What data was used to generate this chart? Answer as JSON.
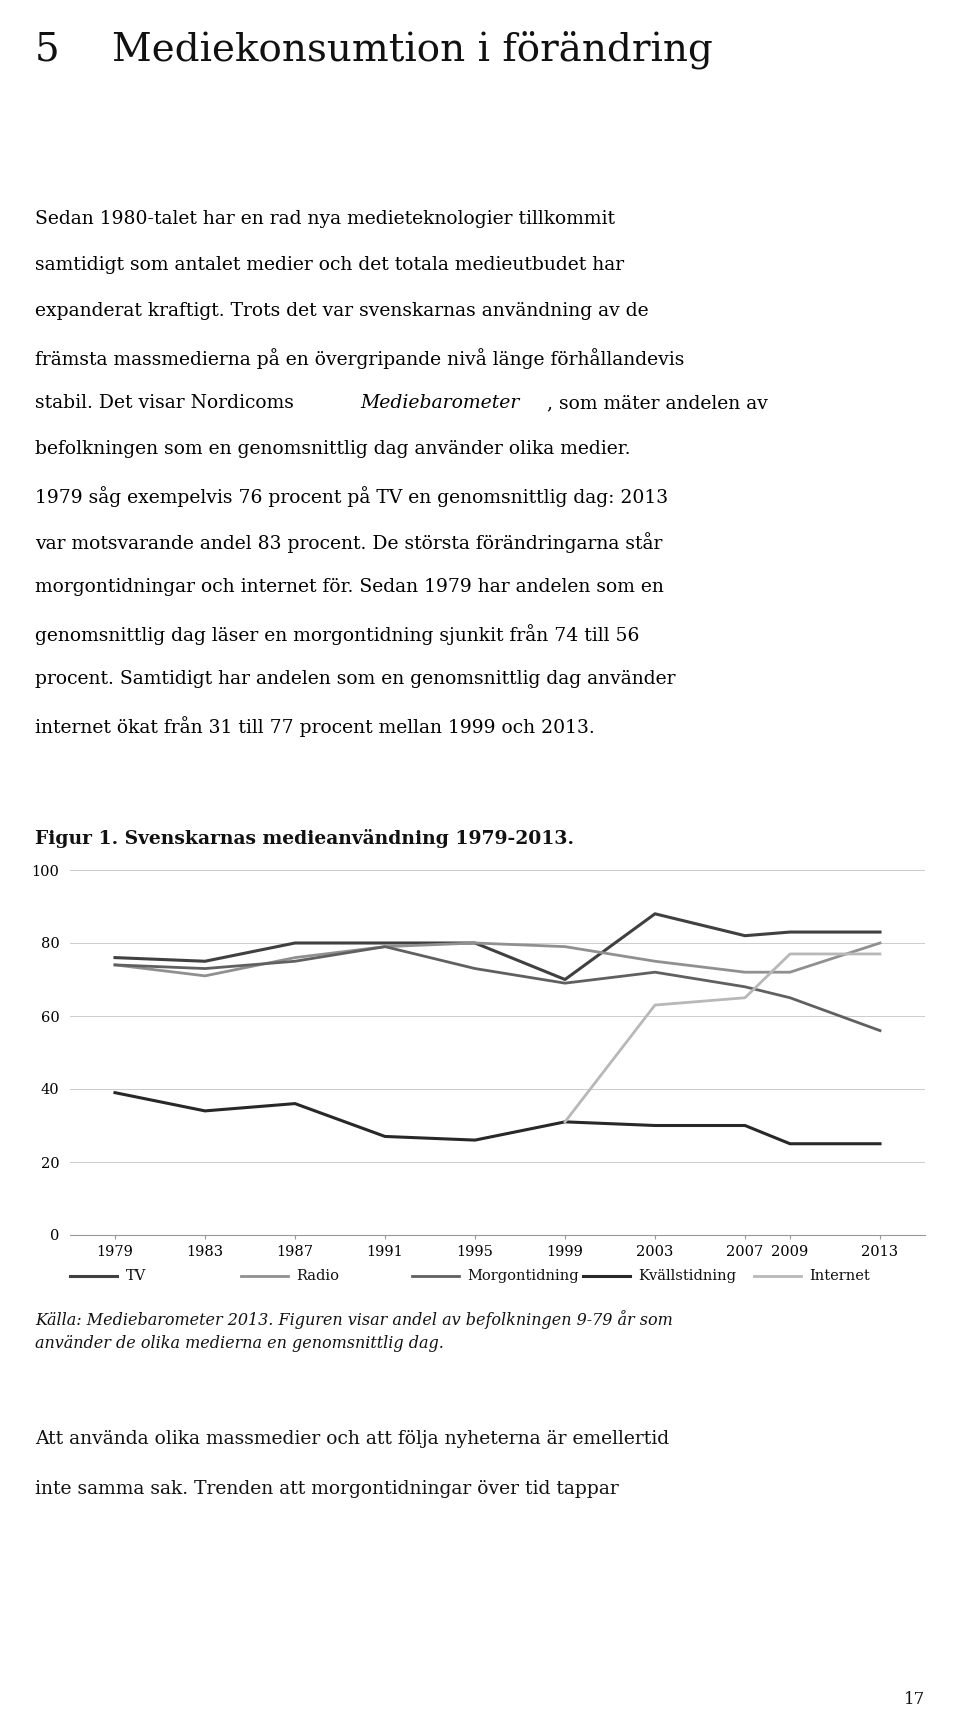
{
  "years": [
    1979,
    1983,
    1987,
    1991,
    1995,
    1999,
    2003,
    2007,
    2009,
    2013
  ],
  "TV": [
    76,
    75,
    80,
    80,
    80,
    70,
    88,
    82,
    83,
    83
  ],
  "Radio": [
    74,
    71,
    76,
    79,
    80,
    79,
    75,
    72,
    72,
    80
  ],
  "Morgontidning": [
    74,
    73,
    75,
    79,
    73,
    69,
    72,
    68,
    65,
    56
  ],
  "Kvallstidning": [
    39,
    34,
    36,
    27,
    26,
    31,
    30,
    30,
    25,
    25
  ],
  "Internet": [
    null,
    null,
    null,
    null,
    null,
    31,
    63,
    65,
    77,
    77
  ],
  "ylim": [
    0,
    100
  ],
  "yticks": [
    0,
    20,
    40,
    60,
    80,
    100
  ],
  "xticks": [
    1979,
    1983,
    1987,
    1991,
    1995,
    1999,
    2003,
    2007,
    2009,
    2013
  ],
  "TV_color": "#404040",
  "Radio_color": "#909090",
  "Morgontidning_color": "#606060",
  "Kvallstidning_color": "#282828",
  "Internet_color": "#b8b8b8",
  "page_bg": "#ffffff",
  "chart_bg": "#ffffff",
  "figure_title": "Figur 1. Svenskarnas medieanvändning 1979-2013.",
  "caption_text": "Källa: Mediebarometer 2013. Figuren visar andel av befolkningen 9-79 år som använder de olika medierna en genomsnittlig dag.",
  "legend_labels": [
    "TV",
    "Radio",
    "Morgontidning",
    "Kvällstidning",
    "Internet"
  ],
  "page_num": "17"
}
